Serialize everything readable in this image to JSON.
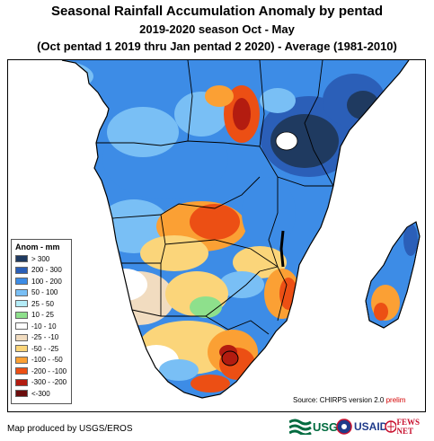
{
  "title": "Seasonal Rainfall Accumulation Anomaly by pentad",
  "subtitle": "2019-2020 season Oct - May",
  "period": "(Oct pentad 1 2019 thru Jan pentad 2 2020) - Average (1981-2010)",
  "legend": {
    "title": "Anom - mm",
    "items": [
      {
        "label": "> 300",
        "color": "#1f3a60"
      },
      {
        "label": "200 - 300",
        "color": "#2b5fb8"
      },
      {
        "label": "100 - 200",
        "color": "#3d8ce6"
      },
      {
        "label": "50 - 100",
        "color": "#79bff5"
      },
      {
        "label": "25 - 50",
        "color": "#b4ecf7"
      },
      {
        "label": "10 - 25",
        "color": "#8ee08c"
      },
      {
        "label": "-10 - 10",
        "color": "#ffffff"
      },
      {
        "label": "-25 - -10",
        "color": "#f1dcc0"
      },
      {
        "label": "-50 - -25",
        "color": "#fbd57a"
      },
      {
        "label": "-100 - -50",
        "color": "#fba034"
      },
      {
        "label": "-200 - -100",
        "color": "#ec4f14"
      },
      {
        "label": "-300 - -200",
        "color": "#b31c10"
      },
      {
        "label": "<-300",
        "color": "#6b0d0d"
      }
    ]
  },
  "source": {
    "text": "Source: CHIRPS version 2.0",
    "prelim": "prelim"
  },
  "credit": "Map produced by USGS/EROS",
  "logos": {
    "usgs": "USGS",
    "usaid": "USAID",
    "fewsnet": "FEWS NET"
  },
  "colors": {
    "ocean": "#ffffff",
    "border": "#000000"
  }
}
